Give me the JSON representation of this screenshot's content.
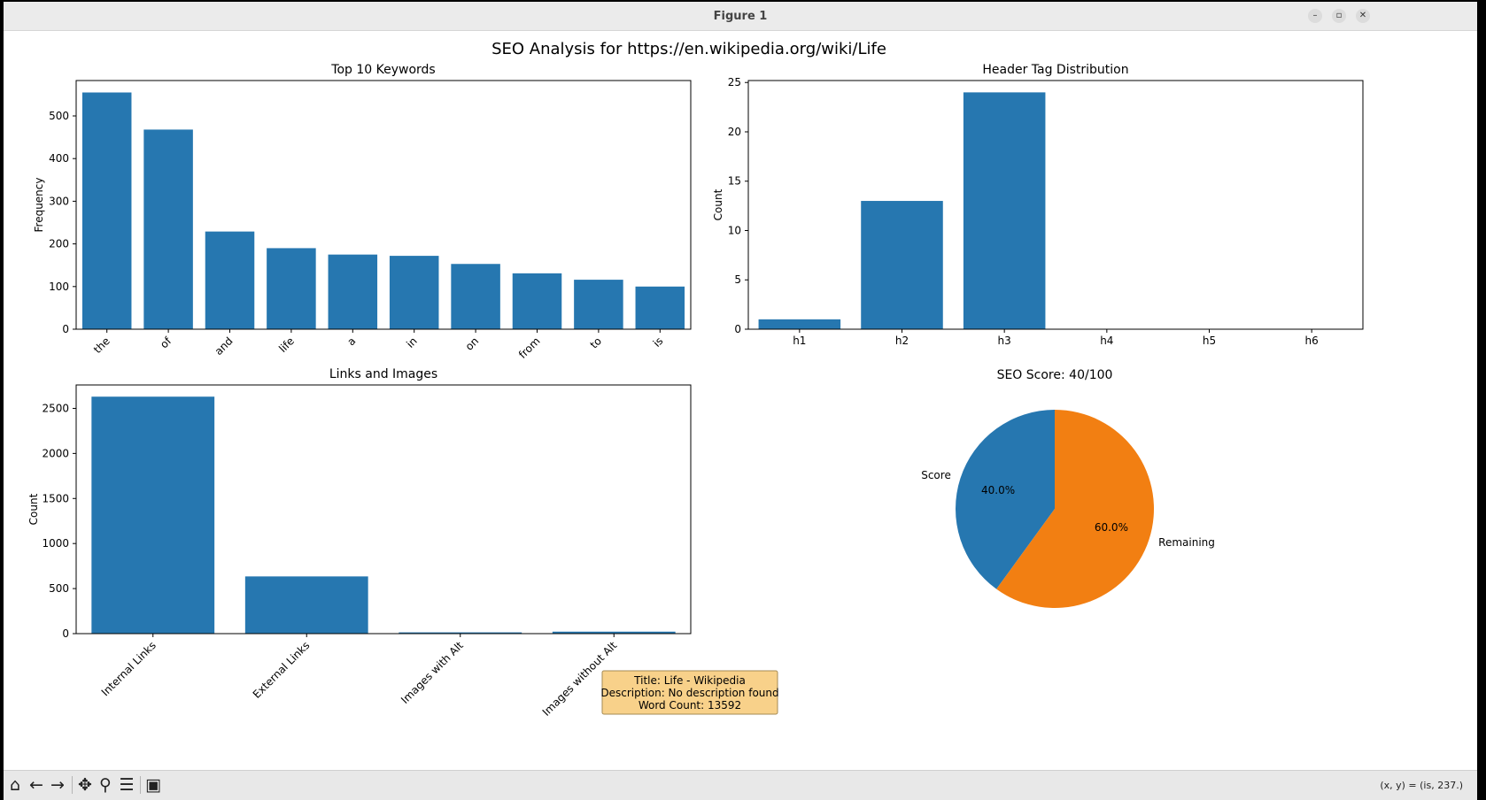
{
  "window": {
    "title": "Figure 1"
  },
  "figure": {
    "suptitle": "SEO Analysis for https://en.wikipedia.org/wiki/Life",
    "info_box": {
      "lines": [
        "Title: Life - Wikipedia",
        "Description: No description found",
        "Word Count: 13592"
      ]
    }
  },
  "chart_data": [
    {
      "type": "bar",
      "title": "Top 10 Keywords",
      "xlabel": "",
      "ylabel": "Frequency",
      "categories": [
        "the",
        "of",
        "and",
        "life",
        "a",
        "in",
        "on",
        "from",
        "to",
        "is"
      ],
      "values": [
        555,
        468,
        229,
        190,
        175,
        172,
        153,
        131,
        116,
        100
      ],
      "ylim": [
        0,
        583
      ],
      "yticks": [
        0,
        100,
        200,
        300,
        400,
        500
      ],
      "color": "#2677b0"
    },
    {
      "type": "bar",
      "title": "Header Tag Distribution",
      "xlabel": "",
      "ylabel": "Count",
      "categories": [
        "h1",
        "h2",
        "h3",
        "h4",
        "h5",
        "h6"
      ],
      "values": [
        1,
        13,
        24,
        0,
        0,
        0
      ],
      "ylim": [
        0,
        25.2
      ],
      "yticks": [
        0,
        5,
        10,
        15,
        20,
        25
      ],
      "color": "#2677b0"
    },
    {
      "type": "bar",
      "title": "Links and Images",
      "xlabel": "",
      "ylabel": "Count",
      "categories": [
        "Internal Links",
        "External Links",
        "Images with Alt",
        "Images without Alt"
      ],
      "values": [
        2630,
        635,
        14,
        22
      ],
      "ylim": [
        0,
        2760
      ],
      "yticks": [
        0,
        500,
        1000,
        1500,
        2000,
        2500
      ],
      "color": "#2677b0"
    },
    {
      "type": "pie",
      "title": "SEO Score: 40/100",
      "labels": [
        "Score",
        "Remaining"
      ],
      "values": [
        40,
        60
      ],
      "pct_labels": [
        "40.0%",
        "60.0%"
      ],
      "colors": [
        "#2677b0",
        "#f27f12"
      ]
    }
  ],
  "toolbar": {
    "icons": [
      "home-icon",
      "back-arrow-icon",
      "forward-arrow-icon",
      "pan-icon",
      "zoom-icon",
      "configure-subplots-icon",
      "save-icon"
    ],
    "coordinates": "(x, y) = (is, 237.)"
  }
}
